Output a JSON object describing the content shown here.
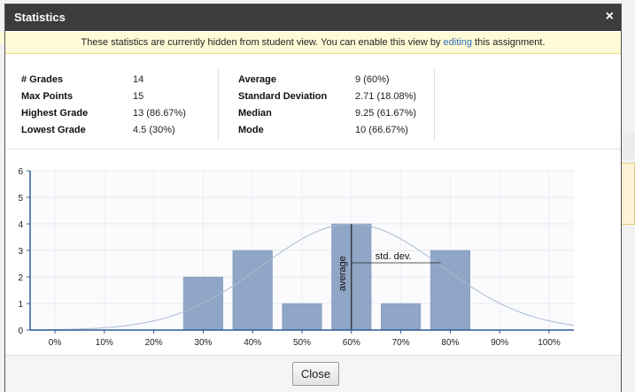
{
  "dialog": {
    "title": "Statistics",
    "close_glyph": "×"
  },
  "notice": {
    "text_before": "These statistics are currently hidden from student view. You can enable this view by ",
    "link": "editing",
    "text_after": " this assignment."
  },
  "stats": {
    "left": [
      {
        "label": "# Grades",
        "value": "14"
      },
      {
        "label": "Max Points",
        "value": "15"
      },
      {
        "label": "Highest Grade",
        "value": "13 (86.67%)"
      },
      {
        "label": "Lowest Grade",
        "value": "4.5 (30%)"
      }
    ],
    "right": [
      {
        "label": "Average",
        "value": "9 (60%)"
      },
      {
        "label": "Standard Deviation",
        "value": "2.71 (18.08%)"
      },
      {
        "label": "Median",
        "value": "9.25 (61.67%)"
      },
      {
        "label": "Mode",
        "value": "10 (66.67%)"
      }
    ]
  },
  "chart_data": {
    "type": "bar",
    "categories": [
      "0%",
      "10%",
      "20%",
      "30%",
      "40%",
      "50%",
      "60%",
      "70%",
      "80%",
      "90%",
      "100%"
    ],
    "values": [
      0,
      0,
      0,
      2,
      3,
      1,
      4,
      1,
      3,
      0,
      0
    ],
    "ylim": [
      0,
      6
    ],
    "yticks": [
      0,
      1,
      2,
      3,
      4,
      5,
      6
    ],
    "grid": true,
    "bar_color": "#8fa6c6",
    "curve_color": "#a9bbd3",
    "normal_curve": {
      "mean_percent": 60,
      "sd_percent": 18.08
    },
    "annotations": {
      "average": "average",
      "std_dev": "std. dev."
    }
  },
  "footer": {
    "close_label": "Close"
  }
}
